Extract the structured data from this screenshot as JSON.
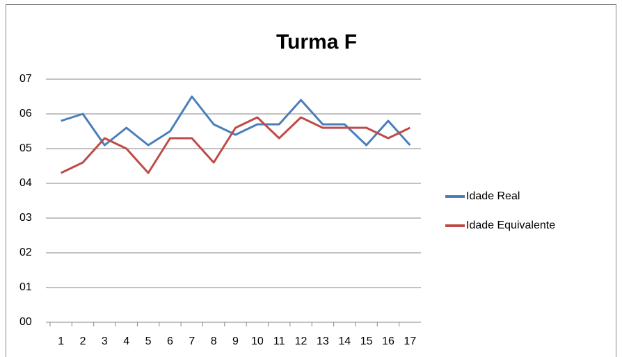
{
  "chart_data": {
    "type": "line",
    "title": "Turma F",
    "categories": [
      "1",
      "2",
      "3",
      "4",
      "5",
      "6",
      "7",
      "8",
      "9",
      "10",
      "11",
      "12",
      "13",
      "14",
      "15",
      "16",
      "17"
    ],
    "series": [
      {
        "name": "Idade Real",
        "color": "#4a7ebb",
        "values": [
          5.8,
          6.0,
          5.1,
          5.6,
          5.1,
          5.5,
          6.5,
          5.7,
          5.4,
          5.7,
          5.7,
          6.4,
          5.7,
          5.7,
          5.1,
          5.8,
          5.1
        ]
      },
      {
        "name": "Idade Equivalente",
        "color": "#be4b48",
        "values": [
          4.3,
          4.6,
          5.3,
          5.0,
          4.3,
          5.3,
          5.3,
          4.6,
          5.6,
          5.9,
          5.3,
          5.9,
          5.6,
          5.6,
          5.6,
          5.3,
          5.6
        ]
      }
    ],
    "ylim": [
      0,
      7
    ],
    "yticks": [
      {
        "value": 0,
        "label": "00"
      },
      {
        "value": 1,
        "label": "01"
      },
      {
        "value": 2,
        "label": "02"
      },
      {
        "value": 3,
        "label": "03"
      },
      {
        "value": 4,
        "label": "04"
      },
      {
        "value": 5,
        "label": "05"
      },
      {
        "value": 6,
        "label": "06"
      },
      {
        "value": 7,
        "label": "07"
      }
    ],
    "grid": true,
    "legend": "right"
  }
}
